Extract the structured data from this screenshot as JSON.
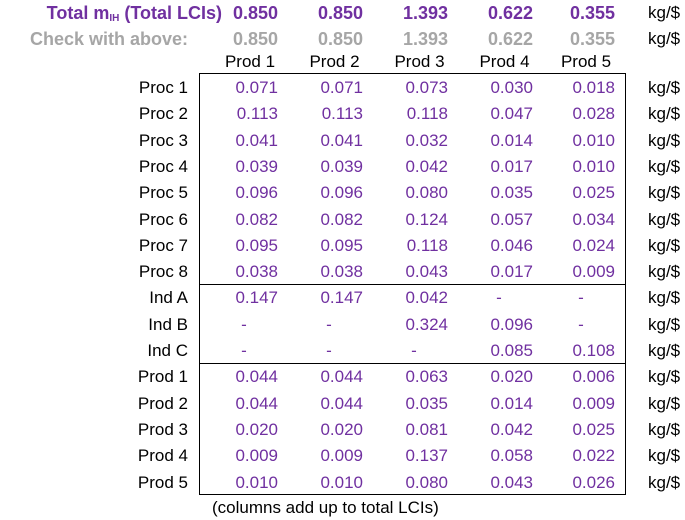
{
  "total_row": {
    "label_prefix": "Total m",
    "label_sub": "IH",
    "label_suffix": " (Total LCIs)",
    "values": [
      "0.850",
      "0.850",
      "1.393",
      "0.622",
      "0.355"
    ],
    "unit": "kg/$"
  },
  "check_row": {
    "label": "Check with above:",
    "values": [
      "0.850",
      "0.850",
      "1.393",
      "0.622",
      "0.355"
    ],
    "unit": "kg/$"
  },
  "columns": [
    "Prod 1",
    "Prod 2",
    "Prod 3",
    "Prod 4",
    "Prod 5"
  ],
  "unit": "kg/$",
  "groups": [
    {
      "rows": [
        {
          "label": "Proc 1",
          "values": [
            "0.071",
            "0.071",
            "0.073",
            "0.030",
            "0.018"
          ]
        },
        {
          "label": "Proc 2",
          "values": [
            "0.113",
            "0.113",
            "0.118",
            "0.047",
            "0.028"
          ]
        },
        {
          "label": "Proc 3",
          "values": [
            "0.041",
            "0.041",
            "0.032",
            "0.014",
            "0.010"
          ]
        },
        {
          "label": "Proc 4",
          "values": [
            "0.039",
            "0.039",
            "0.042",
            "0.017",
            "0.010"
          ]
        },
        {
          "label": "Proc 5",
          "values": [
            "0.096",
            "0.096",
            "0.080",
            "0.035",
            "0.025"
          ]
        },
        {
          "label": "Proc 6",
          "values": [
            "0.082",
            "0.082",
            "0.124",
            "0.057",
            "0.034"
          ]
        },
        {
          "label": "Proc 7",
          "values": [
            "0.095",
            "0.095",
            "0.118",
            "0.046",
            "0.024"
          ]
        },
        {
          "label": "Proc 8",
          "values": [
            "0.038",
            "0.038",
            "0.043",
            "0.017",
            "0.009"
          ]
        }
      ]
    },
    {
      "rows": [
        {
          "label": "Ind A",
          "values": [
            "0.147",
            "0.147",
            "0.042",
            "-",
            "-"
          ]
        },
        {
          "label": "Ind B",
          "values": [
            "-",
            "-",
            "0.324",
            "0.096",
            "-"
          ]
        },
        {
          "label": "Ind C",
          "values": [
            "-",
            "-",
            "-",
            "0.085",
            "0.108"
          ]
        }
      ]
    },
    {
      "rows": [
        {
          "label": "Prod 1",
          "values": [
            "0.044",
            "0.044",
            "0.063",
            "0.020",
            "0.006"
          ]
        },
        {
          "label": "Prod 2",
          "values": [
            "0.044",
            "0.044",
            "0.035",
            "0.014",
            "0.009"
          ]
        },
        {
          "label": "Prod 3",
          "values": [
            "0.020",
            "0.020",
            "0.081",
            "0.042",
            "0.025"
          ]
        },
        {
          "label": "Prod 4",
          "values": [
            "0.009",
            "0.009",
            "0.137",
            "0.058",
            "0.022"
          ]
        },
        {
          "label": "Prod 5",
          "values": [
            "0.010",
            "0.010",
            "0.080",
            "0.043",
            "0.026"
          ]
        }
      ]
    }
  ],
  "footnote": "(columns add up to total LCIs)"
}
